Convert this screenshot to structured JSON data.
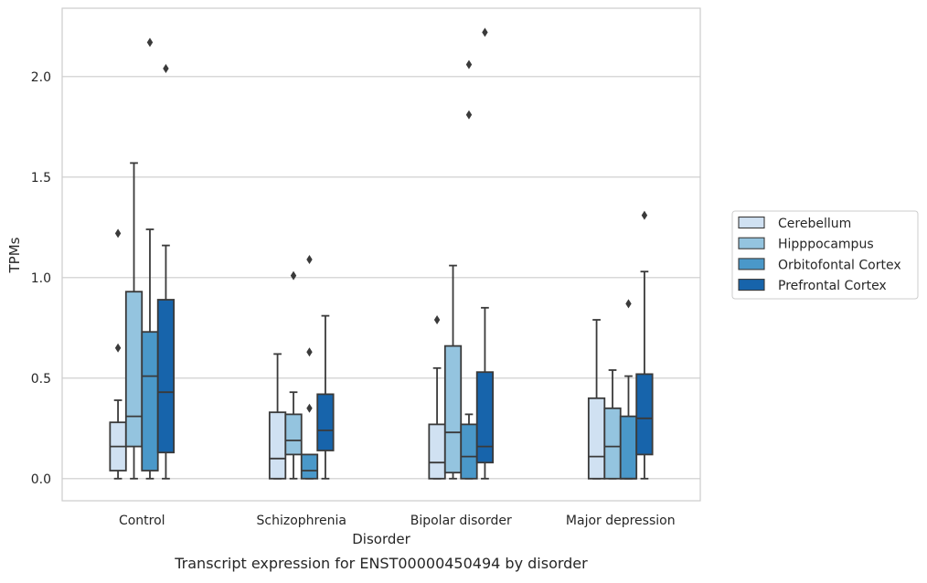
{
  "caption": "Transcript expression for ENST00000450494 by disorder",
  "chart_data": {
    "type": "box",
    "xlabel": "Disorder",
    "ylabel": "TPMs",
    "ylim": [
      -0.11,
      2.34
    ],
    "yticks": [
      "0.0",
      "0.5",
      "1.0",
      "1.5",
      "2.0"
    ],
    "ytick_values": [
      0,
      0.5,
      1.0,
      1.5,
      2.0
    ],
    "grid": "horizontal",
    "legend_position": "right",
    "categories": [
      "Control",
      "Schizophrenia",
      "Bipolar disorder",
      "Major depression"
    ],
    "series": [
      {
        "name": "Cerebellum",
        "color": "#d0e1f2",
        "boxes": [
          {
            "whisker_low": 0.0,
            "q1": 0.04,
            "median": 0.16,
            "q3": 0.28,
            "whisker_high": 0.39,
            "outliers": [
              0.65,
              1.22
            ]
          },
          {
            "whisker_low": 0.0,
            "q1": 0.0,
            "median": 0.1,
            "q3": 0.33,
            "whisker_high": 0.62,
            "outliers": []
          },
          {
            "whisker_low": 0.0,
            "q1": 0.0,
            "median": 0.08,
            "q3": 0.27,
            "whisker_high": 0.55,
            "outliers": [
              0.79
            ]
          },
          {
            "whisker_low": 0.0,
            "q1": 0.0,
            "median": 0.11,
            "q3": 0.4,
            "whisker_high": 0.79,
            "outliers": []
          }
        ]
      },
      {
        "name": "Hipppocampus",
        "color": "#94c4df",
        "boxes": [
          {
            "whisker_low": 0.0,
            "q1": 0.16,
            "median": 0.31,
            "q3": 0.93,
            "whisker_high": 1.57,
            "outliers": []
          },
          {
            "whisker_low": 0.0,
            "q1": 0.12,
            "median": 0.19,
            "q3": 0.32,
            "whisker_high": 0.43,
            "outliers": [
              1.01
            ]
          },
          {
            "whisker_low": 0.0,
            "q1": 0.03,
            "median": 0.23,
            "q3": 0.66,
            "whisker_high": 1.06,
            "outliers": []
          },
          {
            "whisker_low": 0.0,
            "q1": 0.0,
            "median": 0.16,
            "q3": 0.35,
            "whisker_high": 0.54,
            "outliers": []
          }
        ]
      },
      {
        "name": "Orbitofontal Cortex",
        "color": "#4a98c9",
        "boxes": [
          {
            "whisker_low": 0.0,
            "q1": 0.04,
            "median": 0.51,
            "q3": 0.73,
            "whisker_high": 1.24,
            "outliers": [
              2.17
            ]
          },
          {
            "whisker_low": 0.0,
            "q1": 0.0,
            "median": 0.04,
            "q3": 0.12,
            "whisker_high": 0.12,
            "outliers": [
              0.35,
              0.63,
              1.09
            ]
          },
          {
            "whisker_low": 0.0,
            "q1": 0.0,
            "median": 0.11,
            "q3": 0.27,
            "whisker_high": 0.32,
            "outliers": [
              1.81,
              2.06
            ]
          },
          {
            "whisker_low": 0.0,
            "q1": 0.0,
            "median": 0.0,
            "q3": 0.31,
            "whisker_high": 0.51,
            "outliers": [
              0.87
            ]
          }
        ]
      },
      {
        "name": "Prefrontal Cortex",
        "color": "#1764ab",
        "boxes": [
          {
            "whisker_low": 0.0,
            "q1": 0.13,
            "median": 0.43,
            "q3": 0.89,
            "whisker_high": 1.16,
            "outliers": [
              2.04
            ]
          },
          {
            "whisker_low": 0.0,
            "q1": 0.14,
            "median": 0.24,
            "q3": 0.42,
            "whisker_high": 0.81,
            "outliers": []
          },
          {
            "whisker_low": 0.0,
            "q1": 0.08,
            "median": 0.16,
            "q3": 0.53,
            "whisker_high": 0.85,
            "outliers": [
              2.22
            ]
          },
          {
            "whisker_low": 0.0,
            "q1": 0.12,
            "median": 0.3,
            "q3": 0.52,
            "whisker_high": 1.03,
            "outliers": [
              1.31
            ]
          }
        ]
      }
    ]
  }
}
